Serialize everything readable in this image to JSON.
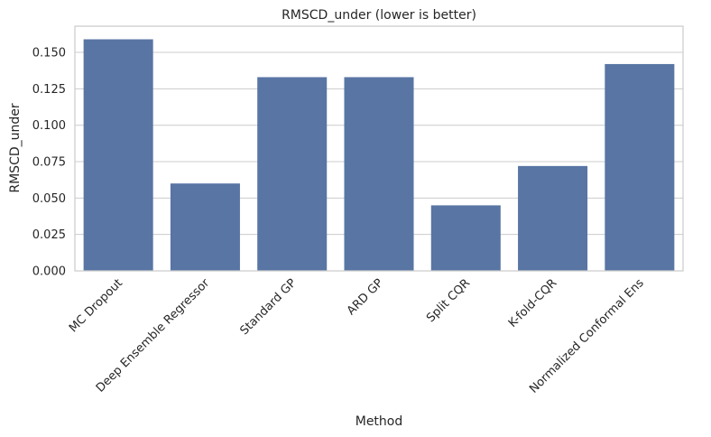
{
  "chart_data": {
    "type": "bar",
    "title": "RMSCD_under (lower is better)",
    "xlabel": "Method",
    "ylabel": "RMSCD_under",
    "categories": [
      "MC Dropout",
      "Deep Ensemble Regressor",
      "Standard GP",
      "ARD GP",
      "Split CQR",
      "K-fold-CQR",
      "Normalized Conformal Ens"
    ],
    "values": [
      0.159,
      0.06,
      0.133,
      0.133,
      0.045,
      0.072,
      0.142
    ],
    "ylim": [
      0,
      0.168
    ],
    "yticks": [
      "0.000",
      "0.025",
      "0.050",
      "0.075",
      "0.100",
      "0.125",
      "0.150"
    ],
    "grid": "horizontal",
    "bar_color": "#5875a4"
  }
}
